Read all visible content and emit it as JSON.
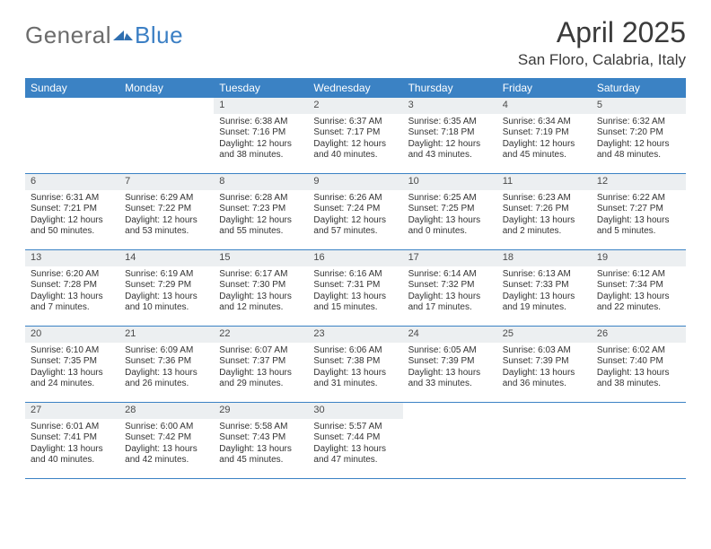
{
  "brand": {
    "name_part1": "General",
    "name_part2": "Blue",
    "text_color": "#6c6c6c",
    "accent_color": "#3b7fc4"
  },
  "header": {
    "month_title": "April 2025",
    "location": "San Floro, Calabria, Italy",
    "title_color": "#3a3a3a"
  },
  "calendar": {
    "header_bg": "#3b82c4",
    "header_fg": "#ffffff",
    "daynum_bg": "#eceff1",
    "daynum_fg": "#4a4a4a",
    "rule_color": "#3b82c4",
    "body_text_color": "#333333",
    "weekday_labels": [
      "Sunday",
      "Monday",
      "Tuesday",
      "Wednesday",
      "Thursday",
      "Friday",
      "Saturday"
    ],
    "weeks": [
      [
        {
          "day": "",
          "sunrise": "",
          "sunset": "",
          "daylight": ""
        },
        {
          "day": "",
          "sunrise": "",
          "sunset": "",
          "daylight": ""
        },
        {
          "day": "1",
          "sunrise": "Sunrise: 6:38 AM",
          "sunset": "Sunset: 7:16 PM",
          "daylight": "Daylight: 12 hours and 38 minutes."
        },
        {
          "day": "2",
          "sunrise": "Sunrise: 6:37 AM",
          "sunset": "Sunset: 7:17 PM",
          "daylight": "Daylight: 12 hours and 40 minutes."
        },
        {
          "day": "3",
          "sunrise": "Sunrise: 6:35 AM",
          "sunset": "Sunset: 7:18 PM",
          "daylight": "Daylight: 12 hours and 43 minutes."
        },
        {
          "day": "4",
          "sunrise": "Sunrise: 6:34 AM",
          "sunset": "Sunset: 7:19 PM",
          "daylight": "Daylight: 12 hours and 45 minutes."
        },
        {
          "day": "5",
          "sunrise": "Sunrise: 6:32 AM",
          "sunset": "Sunset: 7:20 PM",
          "daylight": "Daylight: 12 hours and 48 minutes."
        }
      ],
      [
        {
          "day": "6",
          "sunrise": "Sunrise: 6:31 AM",
          "sunset": "Sunset: 7:21 PM",
          "daylight": "Daylight: 12 hours and 50 minutes."
        },
        {
          "day": "7",
          "sunrise": "Sunrise: 6:29 AM",
          "sunset": "Sunset: 7:22 PM",
          "daylight": "Daylight: 12 hours and 53 minutes."
        },
        {
          "day": "8",
          "sunrise": "Sunrise: 6:28 AM",
          "sunset": "Sunset: 7:23 PM",
          "daylight": "Daylight: 12 hours and 55 minutes."
        },
        {
          "day": "9",
          "sunrise": "Sunrise: 6:26 AM",
          "sunset": "Sunset: 7:24 PM",
          "daylight": "Daylight: 12 hours and 57 minutes."
        },
        {
          "day": "10",
          "sunrise": "Sunrise: 6:25 AM",
          "sunset": "Sunset: 7:25 PM",
          "daylight": "Daylight: 13 hours and 0 minutes."
        },
        {
          "day": "11",
          "sunrise": "Sunrise: 6:23 AM",
          "sunset": "Sunset: 7:26 PM",
          "daylight": "Daylight: 13 hours and 2 minutes."
        },
        {
          "day": "12",
          "sunrise": "Sunrise: 6:22 AM",
          "sunset": "Sunset: 7:27 PM",
          "daylight": "Daylight: 13 hours and 5 minutes."
        }
      ],
      [
        {
          "day": "13",
          "sunrise": "Sunrise: 6:20 AM",
          "sunset": "Sunset: 7:28 PM",
          "daylight": "Daylight: 13 hours and 7 minutes."
        },
        {
          "day": "14",
          "sunrise": "Sunrise: 6:19 AM",
          "sunset": "Sunset: 7:29 PM",
          "daylight": "Daylight: 13 hours and 10 minutes."
        },
        {
          "day": "15",
          "sunrise": "Sunrise: 6:17 AM",
          "sunset": "Sunset: 7:30 PM",
          "daylight": "Daylight: 13 hours and 12 minutes."
        },
        {
          "day": "16",
          "sunrise": "Sunrise: 6:16 AM",
          "sunset": "Sunset: 7:31 PM",
          "daylight": "Daylight: 13 hours and 15 minutes."
        },
        {
          "day": "17",
          "sunrise": "Sunrise: 6:14 AM",
          "sunset": "Sunset: 7:32 PM",
          "daylight": "Daylight: 13 hours and 17 minutes."
        },
        {
          "day": "18",
          "sunrise": "Sunrise: 6:13 AM",
          "sunset": "Sunset: 7:33 PM",
          "daylight": "Daylight: 13 hours and 19 minutes."
        },
        {
          "day": "19",
          "sunrise": "Sunrise: 6:12 AM",
          "sunset": "Sunset: 7:34 PM",
          "daylight": "Daylight: 13 hours and 22 minutes."
        }
      ],
      [
        {
          "day": "20",
          "sunrise": "Sunrise: 6:10 AM",
          "sunset": "Sunset: 7:35 PM",
          "daylight": "Daylight: 13 hours and 24 minutes."
        },
        {
          "day": "21",
          "sunrise": "Sunrise: 6:09 AM",
          "sunset": "Sunset: 7:36 PM",
          "daylight": "Daylight: 13 hours and 26 minutes."
        },
        {
          "day": "22",
          "sunrise": "Sunrise: 6:07 AM",
          "sunset": "Sunset: 7:37 PM",
          "daylight": "Daylight: 13 hours and 29 minutes."
        },
        {
          "day": "23",
          "sunrise": "Sunrise: 6:06 AM",
          "sunset": "Sunset: 7:38 PM",
          "daylight": "Daylight: 13 hours and 31 minutes."
        },
        {
          "day": "24",
          "sunrise": "Sunrise: 6:05 AM",
          "sunset": "Sunset: 7:39 PM",
          "daylight": "Daylight: 13 hours and 33 minutes."
        },
        {
          "day": "25",
          "sunrise": "Sunrise: 6:03 AM",
          "sunset": "Sunset: 7:39 PM",
          "daylight": "Daylight: 13 hours and 36 minutes."
        },
        {
          "day": "26",
          "sunrise": "Sunrise: 6:02 AM",
          "sunset": "Sunset: 7:40 PM",
          "daylight": "Daylight: 13 hours and 38 minutes."
        }
      ],
      [
        {
          "day": "27",
          "sunrise": "Sunrise: 6:01 AM",
          "sunset": "Sunset: 7:41 PM",
          "daylight": "Daylight: 13 hours and 40 minutes."
        },
        {
          "day": "28",
          "sunrise": "Sunrise: 6:00 AM",
          "sunset": "Sunset: 7:42 PM",
          "daylight": "Daylight: 13 hours and 42 minutes."
        },
        {
          "day": "29",
          "sunrise": "Sunrise: 5:58 AM",
          "sunset": "Sunset: 7:43 PM",
          "daylight": "Daylight: 13 hours and 45 minutes."
        },
        {
          "day": "30",
          "sunrise": "Sunrise: 5:57 AM",
          "sunset": "Sunset: 7:44 PM",
          "daylight": "Daylight: 13 hours and 47 minutes."
        },
        {
          "day": "",
          "sunrise": "",
          "sunset": "",
          "daylight": ""
        },
        {
          "day": "",
          "sunrise": "",
          "sunset": "",
          "daylight": ""
        },
        {
          "day": "",
          "sunrise": "",
          "sunset": "",
          "daylight": ""
        }
      ]
    ]
  }
}
